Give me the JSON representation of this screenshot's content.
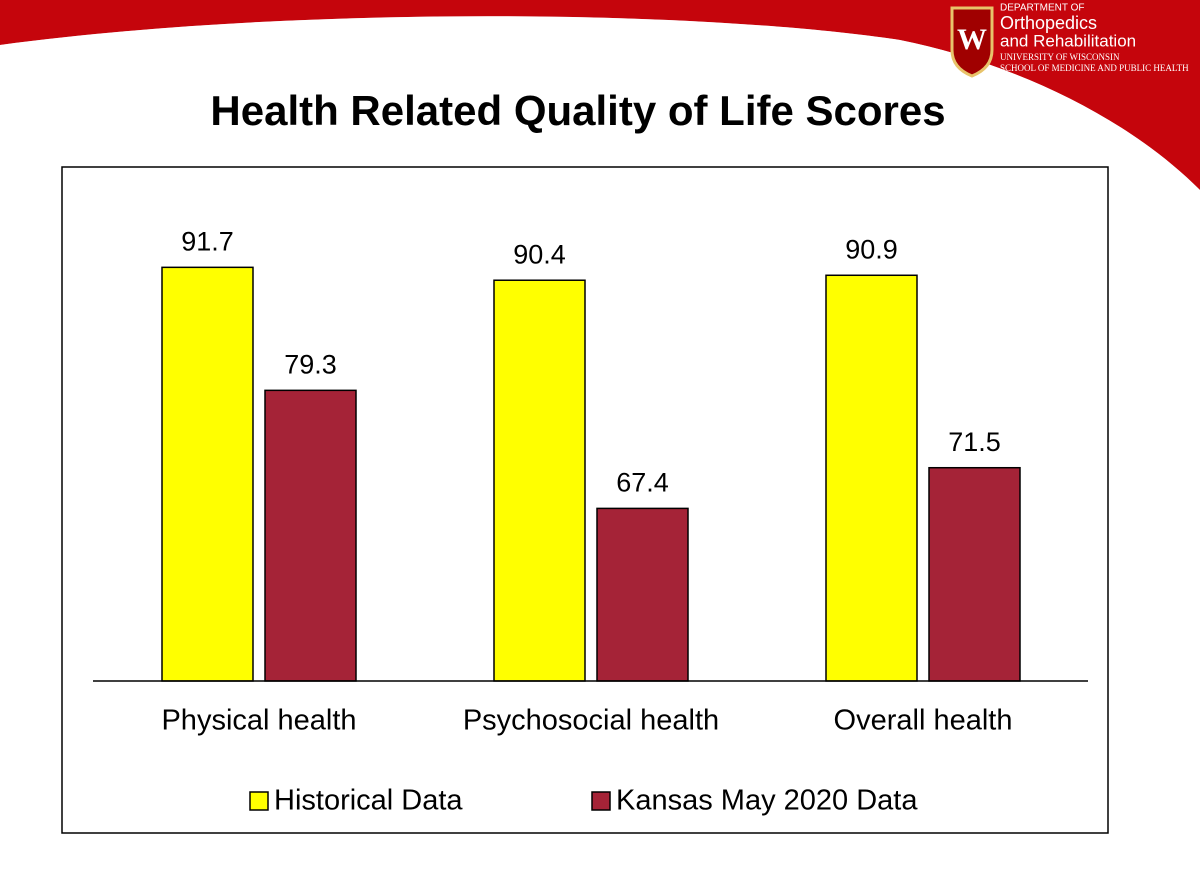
{
  "header": {
    "department": "DEPARTMENT OF",
    "name_line1": "Orthopedics",
    "name_line2": "and Rehabilitation",
    "university": "UNIVERSITY OF WISCONSIN",
    "school": "SCHOOL OF MEDICINE AND PUBLIC HEALTH",
    "logo_letter": "W"
  },
  "chart_data": {
    "type": "bar",
    "title": "Health Related Quality of Life Scores",
    "categories": [
      "Physical health",
      "Psychosocial health",
      "Overall health"
    ],
    "series": [
      {
        "name": "Historical Data",
        "color": "#ffff00",
        "values": [
          91.7,
          90.4,
          90.9
        ]
      },
      {
        "name": "Kansas May 2020 Data",
        "color": "#a52337",
        "values": [
          79.3,
          67.4,
          71.5
        ]
      }
    ],
    "ylim": [
      50,
      100
    ],
    "legend": "bottom"
  }
}
